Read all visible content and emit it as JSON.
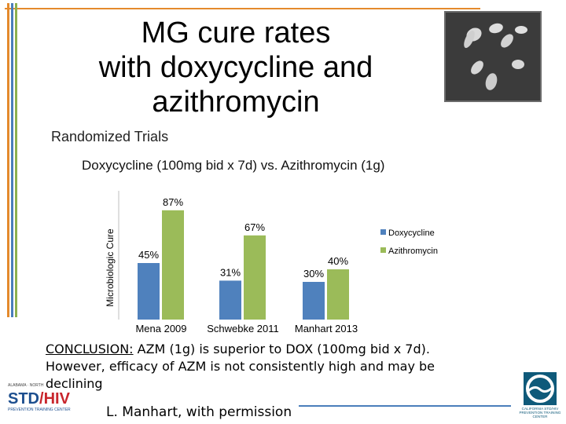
{
  "slide": {
    "title_lines": [
      "MG cure rates",
      "with doxycycline and",
      "azithromycin"
    ],
    "subtitle": "Randomized Trials",
    "comparison": "Doxycycline (100mg bid x 7d) vs. Azithromycin (1g)",
    "conclusion_label": "CONCLUSION:",
    "conclusion_line1_rest": " AZM (1g) is superior to DOX (100mg bid x 7d).",
    "conclusion_line2": "However, efficacy of AZM is not consistently high and may be",
    "conclusion_line3": "declining",
    "credit": "L. Manhart, with permission"
  },
  "logos": {
    "left_top": "ALABAMA · NORTH",
    "left_std": "STD",
    "left_hiv": "HIV",
    "left_bottom": "PREVENTION TRAINING CENTER",
    "right_text": "CALIFORNIA STD/HIV PREVENTION TRAINING CENTER"
  },
  "colors": {
    "doxycycline": "#4f81bd",
    "azithromycin": "#9bbb59",
    "frame_blue": "#4a7ebb",
    "frame_green": "#8db04f",
    "frame_orange": "#e48a2c"
  },
  "chart_data": {
    "type": "bar",
    "categories": [
      "Mena 2009",
      "Schwebke 2011",
      "Manhart 2013"
    ],
    "series": [
      {
        "name": "Doxycycline",
        "values": [
          45,
          31,
          30
        ],
        "labels": [
          "45%",
          "31%",
          "30%"
        ]
      },
      {
        "name": "Azithromycin",
        "values": [
          87,
          67,
          40
        ],
        "labels": [
          "87%",
          "67%",
          "40%"
        ]
      }
    ],
    "ylabel": "Microbiologic Cure",
    "ylim": [
      0,
      100
    ],
    "grid": false,
    "legend": "right"
  }
}
